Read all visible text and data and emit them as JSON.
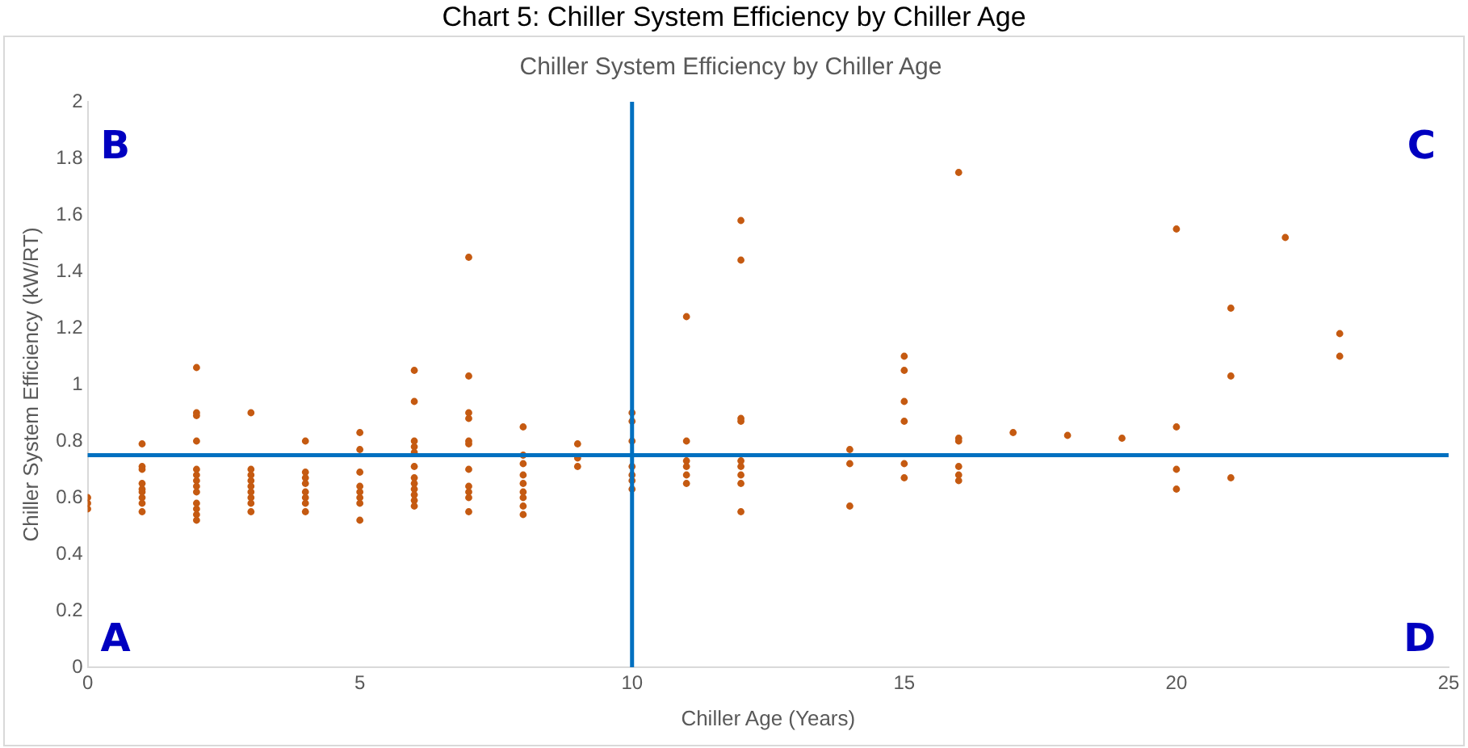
{
  "chart_data": {
    "type": "scatter",
    "title": "Chart 5: Chiller System Efficiency by Chiller Age",
    "subtitle": "Chiller System Efficiency by Chiller Age",
    "xlabel": "Chiller Age (Years)",
    "ylabel": "Chiller System Efficiency (kW/RT)",
    "xlim": [
      0,
      25
    ],
    "xticks": [
      0,
      5,
      10,
      15,
      20,
      25
    ],
    "ylim": [
      0,
      2
    ],
    "yticks": [
      0,
      {
        "value": 0.2,
        "label": "0.2"
      },
      {
        "value": 0.4,
        "label": "0.4"
      },
      {
        "value": 0.6,
        "label": "0.6"
      },
      {
        "value": 0.8,
        "label": "0.8"
      },
      1,
      {
        "value": 1.2,
        "label": "1.2"
      },
      {
        "value": 1.4,
        "label": "1.4"
      },
      {
        "value": 1.6,
        "label": "1.6"
      },
      {
        "value": 1.8,
        "label": "1.8"
      },
      2
    ],
    "grid": false,
    "legend": false,
    "marker": "circle",
    "ref_lines": [
      {
        "axis": "x",
        "value": 10,
        "color": "#0070c0"
      },
      {
        "axis": "y",
        "value": 0.75,
        "color": "#0070c0"
      }
    ],
    "annotations": [
      "B",
      "C",
      "A",
      "D"
    ],
    "series": [
      {
        "color": "#c55a11",
        "x": [
          0,
          0,
          0,
          1,
          1,
          1,
          1,
          1,
          1,
          1,
          1,
          1,
          2,
          2,
          2,
          2,
          2,
          2,
          2,
          2,
          2,
          2,
          2,
          2,
          2,
          3,
          3,
          3,
          3,
          3,
          3,
          3,
          3,
          3,
          4,
          4,
          4,
          4,
          4,
          4,
          4,
          4,
          5,
          5,
          5,
          5,
          5,
          5,
          5,
          5,
          6,
          6,
          6,
          6,
          6,
          6,
          6,
          6,
          6,
          6,
          6,
          6,
          7,
          7,
          7,
          7,
          7,
          7,
          7,
          7,
          7,
          7,
          7,
          8,
          8,
          8,
          8,
          8,
          8,
          8,
          8,
          8,
          9,
          9,
          9,
          10,
          10,
          10,
          10,
          10,
          10,
          10,
          11,
          11,
          11,
          11,
          11,
          11,
          12,
          12,
          12,
          12,
          12,
          12,
          12,
          12,
          12,
          14,
          14,
          14,
          15,
          15,
          15,
          15,
          15,
          15,
          16,
          16,
          16,
          16,
          16,
          16,
          17,
          18,
          19,
          20,
          20,
          20,
          20,
          21,
          21,
          21,
          22,
          23,
          23
        ],
        "values": [
          0.56,
          0.58,
          0.6,
          0.79,
          0.71,
          0.7,
          0.65,
          0.63,
          0.62,
          0.6,
          0.58,
          0.55,
          1.06,
          0.9,
          0.89,
          0.8,
          0.7,
          0.68,
          0.66,
          0.64,
          0.62,
          0.58,
          0.56,
          0.54,
          0.52,
          0.9,
          0.7,
          0.68,
          0.66,
          0.64,
          0.62,
          0.6,
          0.58,
          0.55,
          0.8,
          0.69,
          0.67,
          0.65,
          0.62,
          0.6,
          0.58,
          0.55,
          0.83,
          0.77,
          0.69,
          0.64,
          0.62,
          0.6,
          0.58,
          0.52,
          1.05,
          0.94,
          0.8,
          0.78,
          0.76,
          0.71,
          0.67,
          0.65,
          0.63,
          0.61,
          0.59,
          0.57,
          1.45,
          1.03,
          0.9,
          0.88,
          0.8,
          0.79,
          0.7,
          0.64,
          0.62,
          0.6,
          0.55,
          0.85,
          0.75,
          0.72,
          0.68,
          0.65,
          0.62,
          0.6,
          0.57,
          0.54,
          0.79,
          0.74,
          0.71,
          0.9,
          0.87,
          0.8,
          0.71,
          0.68,
          0.66,
          0.63,
          1.24,
          0.8,
          0.73,
          0.71,
          0.68,
          0.65,
          1.58,
          1.44,
          0.88,
          0.87,
          0.73,
          0.71,
          0.68,
          0.65,
          0.55,
          0.77,
          0.72,
          0.57,
          1.1,
          1.05,
          0.94,
          0.87,
          0.72,
          0.67,
          1.75,
          0.81,
          0.8,
          0.71,
          0.68,
          0.66,
          0.83,
          0.82,
          0.81,
          1.55,
          0.85,
          0.7,
          0.63,
          1.27,
          1.03,
          0.67,
          1.52,
          1.18,
          1.1
        ]
      }
    ]
  }
}
